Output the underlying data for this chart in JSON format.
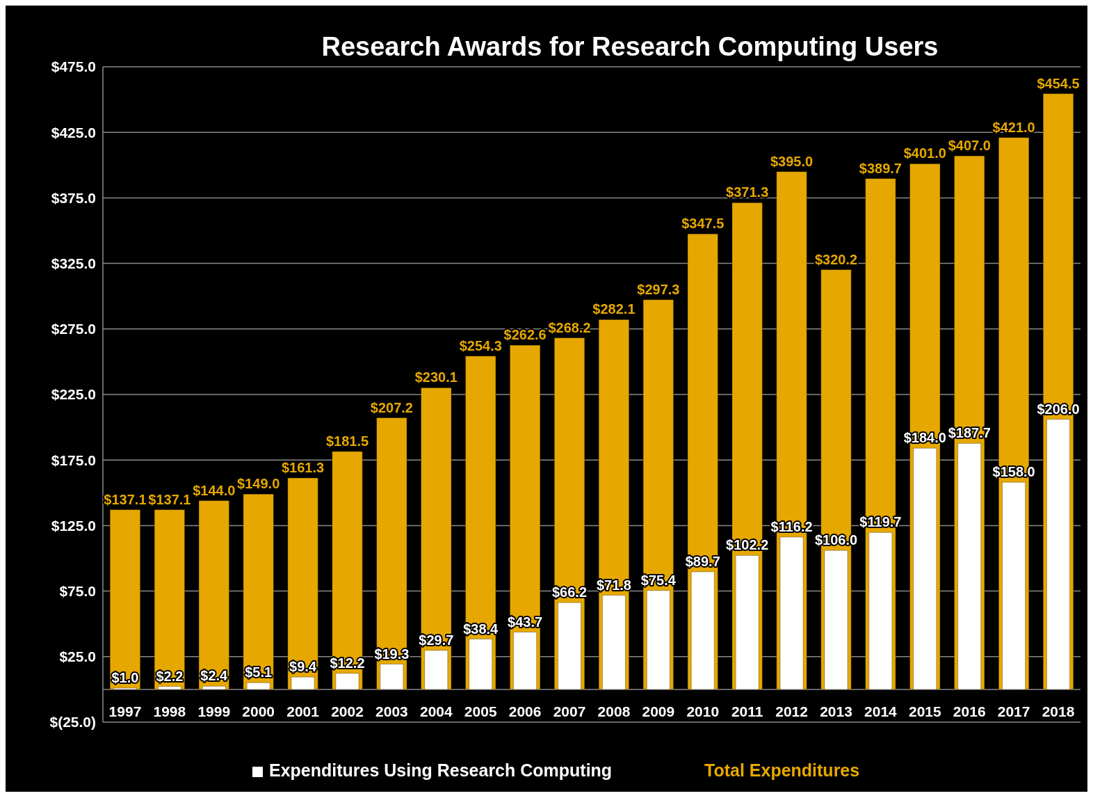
{
  "chart_data": {
    "type": "bar",
    "title": "Research Awards for Research Computing Users",
    "categories": [
      "1997",
      "1998",
      "1999",
      "2000",
      "2001",
      "2002",
      "2003",
      "2004",
      "2005",
      "2006",
      "2007",
      "2008",
      "2009",
      "2010",
      "2011",
      "2012",
      "2013",
      "2014",
      "2015",
      "2016",
      "2017",
      "2018"
    ],
    "series": [
      {
        "name": "Expenditures Using Research Computing",
        "color": "#ffffff",
        "values": [
          1.0,
          2.2,
          2.4,
          5.1,
          9.4,
          12.2,
          19.3,
          29.7,
          38.4,
          43.7,
          66.2,
          71.8,
          75.4,
          89.7,
          102.2,
          116.2,
          106.0,
          119.7,
          184.0,
          187.7,
          158.0,
          206.0
        ],
        "value_labels": [
          "$1.0",
          "$2.2",
          "$2.4",
          "$5.1",
          "$9.4",
          "$12.2",
          "$19.3",
          "$29.7",
          "$38.4",
          "$43.7",
          "$66.2",
          "$71.8",
          "$75.4",
          "$89.7",
          "$102.2",
          "$116.2",
          "$106.0",
          "$119.7",
          "$184.0",
          "$187.7",
          "$158.0",
          "$206.0"
        ]
      },
      {
        "name": "Total Expenditures",
        "color": "#e6a800",
        "values": [
          137.1,
          137.1,
          144.0,
          149.0,
          161.3,
          181.5,
          207.2,
          230.1,
          254.3,
          262.6,
          268.2,
          282.1,
          297.3,
          347.5,
          371.3,
          395.0,
          320.2,
          389.7,
          401.0,
          407.0,
          421.0,
          454.5
        ],
        "value_labels": [
          "$137.1",
          "$137.1",
          "$144.0",
          "$149.0",
          "$161.3",
          "$181.5",
          "$207.2",
          "$230.1",
          "$254.3",
          "$262.6",
          "$268.2",
          "$282.1",
          "$297.3",
          "$347.5",
          "$371.3",
          "$395.0",
          "$320.2",
          "$389.7",
          "$401.0",
          "$407.0",
          "$421.0",
          "$454.5"
        ]
      }
    ],
    "ylim": [
      -25,
      475
    ],
    "yticks": [
      {
        "value": -25,
        "label": "$(25.0)"
      },
      {
        "value": 25,
        "label": "$25.0"
      },
      {
        "value": 75,
        "label": "$75.0"
      },
      {
        "value": 125,
        "label": "$125.0"
      },
      {
        "value": 175,
        "label": "$175.0"
      },
      {
        "value": 225,
        "label": "$225.0"
      },
      {
        "value": 275,
        "label": "$275.0"
      },
      {
        "value": 325,
        "label": "$325.0"
      },
      {
        "value": 375,
        "label": "$375.0"
      },
      {
        "value": 425,
        "label": "$425.0"
      },
      {
        "value": 475,
        "label": "$475.0"
      }
    ],
    "grid": "y",
    "legend": "bottom"
  }
}
